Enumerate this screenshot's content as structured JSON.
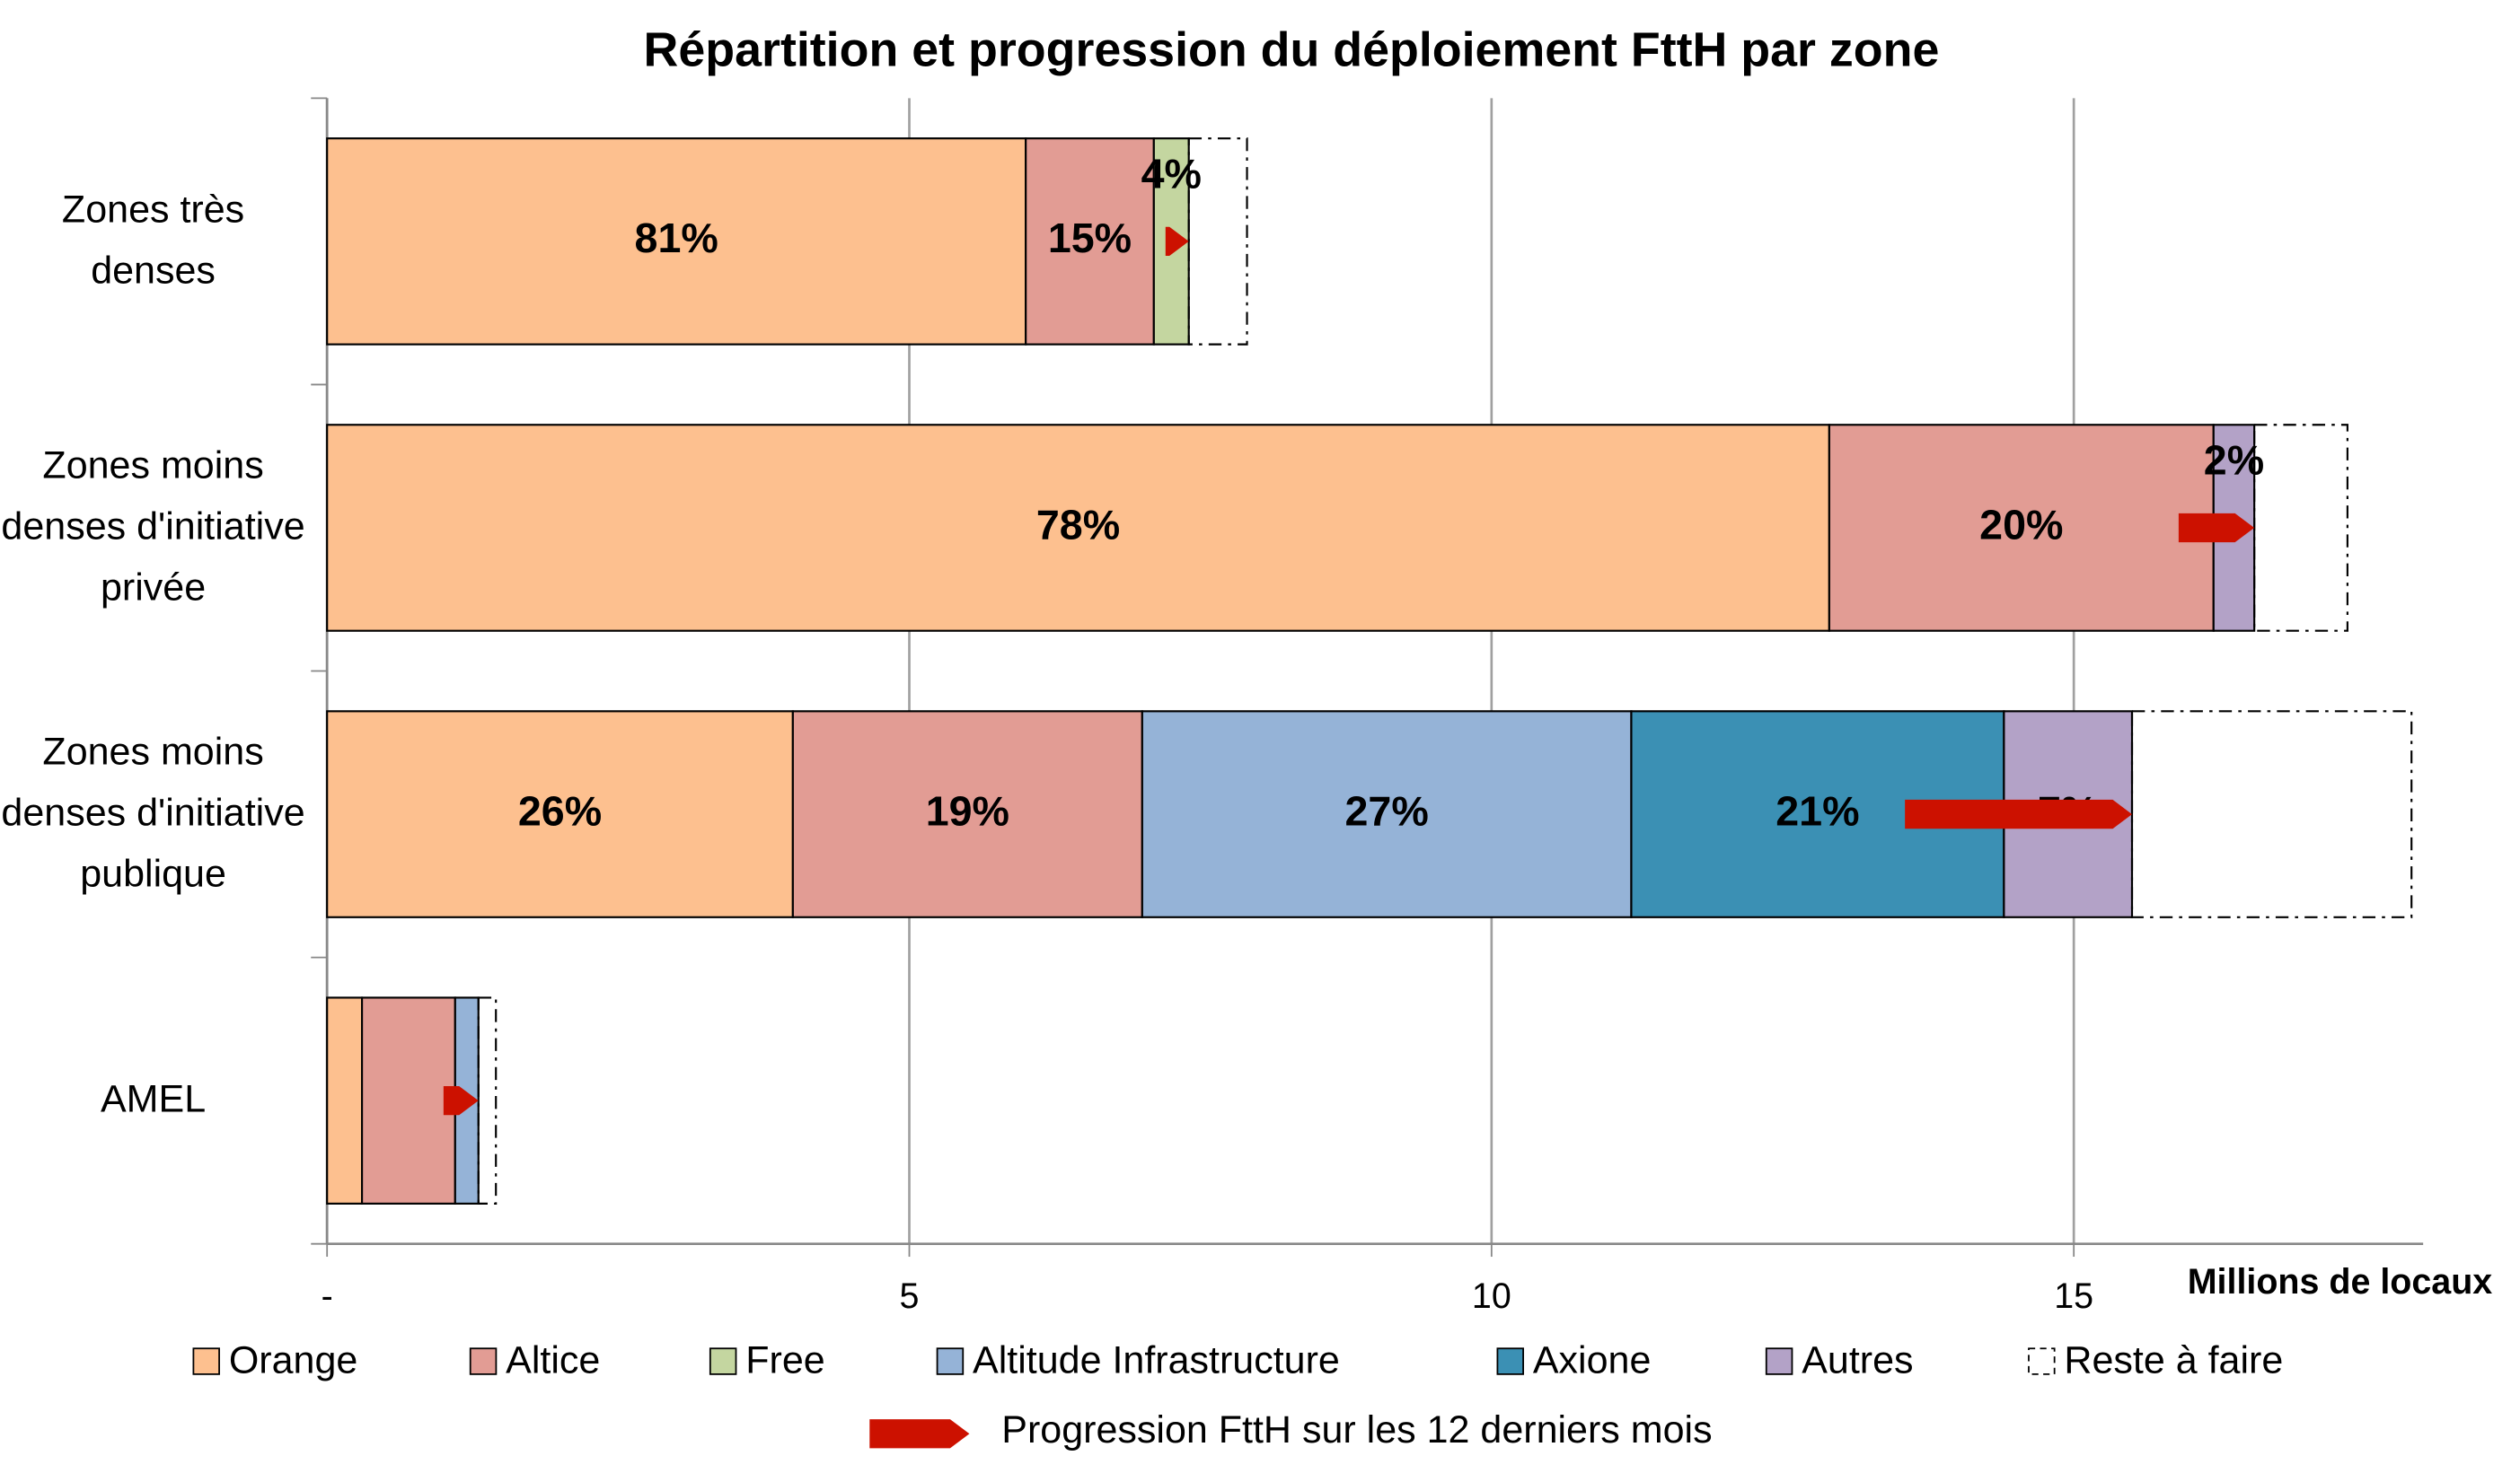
{
  "chart_data": {
    "type": "stacked_bar_horizontal",
    "title": "Répartition et progression du déploiement FttH par zone",
    "x_label": "Millions de locaux",
    "categories": [
      "Zones très denses",
      "Zones moins denses d'initiative privée",
      "Zones moins denses d'initiative publique",
      "AMEL"
    ],
    "series": [
      {
        "name": "Orange",
        "color": "#fdc08f",
        "values": [
          6.0,
          12.9,
          4.0,
          0.3
        ],
        "value_labels": [
          "81%",
          "78%",
          "26%",
          null
        ]
      },
      {
        "name": "Altice",
        "color": "#e29c94",
        "values": [
          1.1,
          3.3,
          3.0,
          0.8
        ],
        "value_labels": [
          "15%",
          "20%",
          "19%",
          null
        ]
      },
      {
        "name": "Free",
        "color": "#c4d6a0",
        "values": [
          0.3,
          null,
          null,
          null
        ],
        "value_labels": [
          "4%",
          null,
          null,
          null
        ]
      },
      {
        "name": "Altitude Infrastructure",
        "color": "#95b3d7",
        "values": [
          null,
          null,
          4.2,
          0.2
        ],
        "value_labels": [
          null,
          null,
          "27%",
          null
        ]
      },
      {
        "name": "Axione",
        "color": "#3b90b4",
        "values": [
          null,
          null,
          3.2,
          null
        ],
        "value_labels": [
          null,
          null,
          "21%",
          null
        ]
      },
      {
        "name": "Autres",
        "color": "#b3a2c7",
        "values": [
          null,
          0.35,
          1.1,
          null
        ],
        "value_labels": [
          null,
          "2%",
          "7%",
          null
        ]
      },
      {
        "name": "Reste à faire",
        "color": "none",
        "values": [
          0.5,
          0.8,
          2.4,
          0.15
        ]
      }
    ],
    "progression": {
      "name": "Progression FttH sur les 12 derniers mois",
      "color": "#cc1100",
      "values": [
        0.2,
        0.65,
        1.95,
        0.3
      ]
    },
    "xlim": [
      0,
      18
    ],
    "xticks": [
      {
        "value": 0,
        "label": "-"
      },
      5,
      10,
      15
    ],
    "grid": true
  }
}
